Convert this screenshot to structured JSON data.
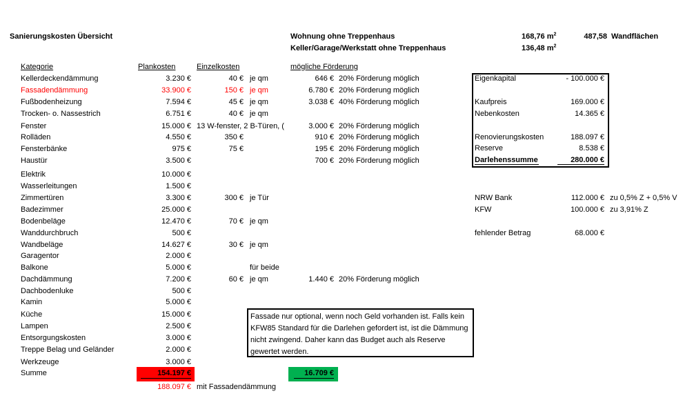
{
  "title": "Sanierungskosten Übersicht",
  "areas": [
    {
      "label": "Wohnung ohne Treppenhaus",
      "value": "168,76 m",
      "extra_value": "487,58",
      "extra_label": "Wandflächen"
    },
    {
      "label": "Keller/Garage/Werkstatt ohne Treppenhaus",
      "value": "136,48 m"
    }
  ],
  "area_unit_sup": "2",
  "headers": {
    "kategorie": "Kategorie",
    "plankosten": "Plankosten",
    "einzelkosten": "Einzelkosten",
    "foerderung": "mögliche Förderung"
  },
  "rows": [
    {
      "cat": "Kellerdeckendämmung",
      "plan": "3.230 €",
      "einzel": "40 €",
      "unit": "je qm",
      "foerd": "646 €",
      "foerd_text": "20% Förderung möglich"
    },
    {
      "cat": "Fassadendämmung",
      "plan": "33.900 €",
      "einzel": "150 €",
      "unit": "je qm",
      "foerd": "6.780 €",
      "foerd_text": "20% Förderung möglich",
      "red": true
    },
    {
      "cat": "Fußbodenheizung",
      "plan": "7.594 €",
      "einzel": "45 €",
      "unit": "je qm",
      "foerd": "3.038 €",
      "foerd_text": "40% Förderung möglich"
    },
    {
      "cat": "Trocken- o. Nassestrich",
      "plan": "6.751 €",
      "einzel": "40 €",
      "unit": "je qm"
    },
    {
      "cat": "Fenster",
      "plan": "15.000 €",
      "einzel_note": "13 W-fenster, 2 B-Türen, (",
      "foerd": "3.000 €",
      "foerd_text": "20% Förderung möglich"
    },
    {
      "cat": "Rolläden",
      "plan": "4.550 €",
      "einzel": "350 €",
      "foerd": "910 €",
      "foerd_text": "20% Förderung möglich"
    },
    {
      "cat": "Fensterbänke",
      "plan": "975 €",
      "einzel": "75 €",
      "foerd": "195 €",
      "foerd_text": "20% Förderung möglich"
    },
    {
      "cat": "Haustür",
      "plan": "3.500 €",
      "foerd": "700 €",
      "foerd_text": "20% Förderung möglich"
    },
    {
      "cat": "Elektrik",
      "plan": "10.000 €"
    },
    {
      "cat": "Wasserleitungen",
      "plan": "1.500 €"
    },
    {
      "cat": "Zimmertüren",
      "plan": "3.300 €",
      "einzel": "300 €",
      "unit": "je Tür"
    },
    {
      "cat": "Badezimmer",
      "plan": "25.000 €"
    },
    {
      "cat": "Bodenbeläge",
      "plan": "12.470 €",
      "einzel": "70 €",
      "unit": "je qm"
    },
    {
      "cat": "Wanddurchbruch",
      "plan": "500 €"
    },
    {
      "cat": "Wandbeläge",
      "plan": "14.627 €",
      "einzel": "30 €",
      "unit": "je qm"
    },
    {
      "cat": "Garagentor",
      "plan": "2.000 €"
    },
    {
      "cat": "Balkone",
      "plan": "5.000 €",
      "unit": "für beide"
    },
    {
      "cat": "Dachdämmung",
      "plan": "7.200 €",
      "einzel": "60 €",
      "unit": "je qm",
      "foerd": "1.440 €",
      "foerd_text": "20% Förderung möglich"
    },
    {
      "cat": "Dachbodenluke",
      "plan": "500 €"
    },
    {
      "cat": "Kamin",
      "plan": "5.000 €"
    },
    {
      "cat": "Küche",
      "plan": "15.000 €"
    },
    {
      "cat": "Lampen",
      "plan": "2.500 €"
    },
    {
      "cat": "Entsorgungskosten",
      "plan": "3.000 €"
    },
    {
      "cat": "Treppe Belag und Geländer",
      "plan": "2.000 €"
    },
    {
      "cat": "Werkzeuge",
      "plan": "3.000 €"
    }
  ],
  "summe": {
    "label": "Summe",
    "plan": "154.197 €",
    "foerd": "16.709 €",
    "with_facade": "188.097 €",
    "with_facade_label": "mit Fassadendämmung"
  },
  "finance_box": [
    {
      "label": "Eigenkapital",
      "value": "-  100.000 €"
    },
    {
      "label": "Kaufpreis",
      "value": "169.000 €"
    },
    {
      "label": "Nebenkosten",
      "value": "14.365 €"
    },
    {
      "label": "Renovierungskosten",
      "value": "188.097 €"
    },
    {
      "label": "Reserve",
      "value": "8.538 €"
    },
    {
      "label": "Darlehenssumme",
      "value": "280.000 €",
      "bold": true
    }
  ],
  "loans": [
    {
      "label": "NRW Bank",
      "value": "112.000 €",
      "note": "zu 0,5% Z + 0,5% V"
    },
    {
      "label": "KFW",
      "value": "100.000 €",
      "note": "zu 3,91% Z"
    },
    {
      "label": "fehlender Betrag",
      "value": "68.000 €"
    }
  ],
  "note": "Fassade nur optional, wenn noch Geld vorhanden ist. Falls kein KFW85 Standard für die Darlehen gefordert ist, ist die Dämmung nicht zwingend. Daher kann das Budget auch als Reserve gewertet werden.",
  "colors": {
    "red": "#ff0000",
    "sum_red": "#ff0000",
    "sum_green": "#00b050"
  }
}
